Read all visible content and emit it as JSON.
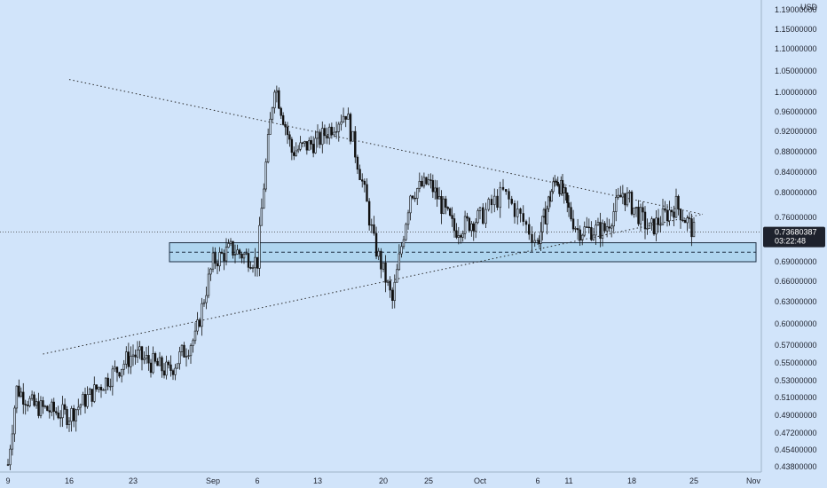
{
  "chart_data": {
    "type": "candlestick",
    "currency": "USD",
    "x_ticks": [
      "9",
      "16",
      "23",
      "Sep",
      "6",
      "13",
      "20",
      "25",
      "Oct",
      "6",
      "11",
      "18",
      "25",
      "Nov"
    ],
    "y_ticks": [
      "1.19000000",
      "1.15000000",
      "1.10000000",
      "1.05000000",
      "1.00000000",
      "0.96000000",
      "0.92000000",
      "0.88000000",
      "0.84000000",
      "0.80000000",
      "0.76000000",
      "0.73680387",
      "0.69000000",
      "0.66000000",
      "0.63000000",
      "0.60000000",
      "0.57000000",
      "0.55000000",
      "0.53000000",
      "0.51000000",
      "0.49000000",
      "0.47200000",
      "0.45400000",
      "0.43800000"
    ],
    "last_price": {
      "value": "0.73680387",
      "countdown": "03:22:48"
    },
    "support_zone": {
      "low": 0.69,
      "high": 0.72
    },
    "triangle": {
      "upper_line": [
        {
          "x": "Aug 16",
          "y": 1.03
        },
        {
          "x": "Oct 26",
          "y": 0.765
        }
      ],
      "lower_line": [
        {
          "x": "Aug 13",
          "y": 0.56
        },
        {
          "x": "Oct 26",
          "y": 0.765
        }
      ]
    },
    "approx_closes": [
      {
        "x": "Aug 9",
        "y": 0.44
      },
      {
        "x": "Aug 10",
        "y": 0.52
      },
      {
        "x": "Aug 12",
        "y": 0.5
      },
      {
        "x": "Aug 16",
        "y": 0.49
      },
      {
        "x": "Aug 20",
        "y": 0.53
      },
      {
        "x": "Aug 23",
        "y": 0.56
      },
      {
        "x": "Aug 27",
        "y": 0.54
      },
      {
        "x": "Aug 30",
        "y": 0.58
      },
      {
        "x": "Sep 1",
        "y": 0.69
      },
      {
        "x": "Sep 3",
        "y": 0.71
      },
      {
        "x": "Sep 6",
        "y": 0.69
      },
      {
        "x": "Sep 8",
        "y": 1.02
      },
      {
        "x": "Sep 10",
        "y": 0.88
      },
      {
        "x": "Sep 13",
        "y": 0.9
      },
      {
        "x": "Sep 16",
        "y": 0.96
      },
      {
        "x": "Sep 19",
        "y": 0.72
      },
      {
        "x": "Sep 21",
        "y": 0.63
      },
      {
        "x": "Sep 23",
        "y": 0.8
      },
      {
        "x": "Sep 25",
        "y": 0.82
      },
      {
        "x": "Sep 28",
        "y": 0.74
      },
      {
        "x": "Oct 1",
        "y": 0.76
      },
      {
        "x": "Oct 3",
        "y": 0.8
      },
      {
        "x": "Oct 6",
        "y": 0.72
      },
      {
        "x": "Oct 9",
        "y": 0.83
      },
      {
        "x": "Oct 12",
        "y": 0.74
      },
      {
        "x": "Oct 15",
        "y": 0.74
      },
      {
        "x": "Oct 17",
        "y": 0.8
      },
      {
        "x": "Oct 20",
        "y": 0.74
      },
      {
        "x": "Oct 23",
        "y": 0.78
      },
      {
        "x": "Oct 25",
        "y": 0.737
      }
    ],
    "colors": {
      "background": "#d1e4fa",
      "candle": "#111111",
      "zone_fill": "#a9d2ec",
      "zone_border": "#1f2f44",
      "trendline": "#2a2a2a",
      "price_tag": "#1e222d"
    },
    "grid": false,
    "legend": "none"
  }
}
